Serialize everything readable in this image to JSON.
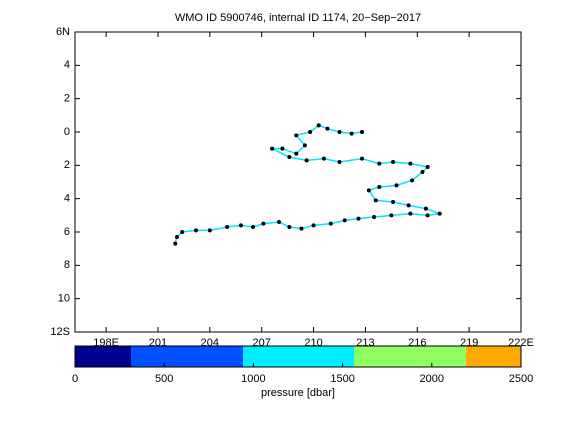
{
  "chart_data": {
    "type": "line",
    "title": "WMO ID 5900746, internal ID 1174, 20−Sep−2017",
    "xlim": [
      196.2,
      222
    ],
    "ylim": [
      -12,
      6
    ],
    "xticks": [
      {
        "value": 198,
        "label": "198E"
      },
      201,
      204,
      207,
      210,
      213,
      216,
      219,
      {
        "value": 222,
        "label": "222E"
      }
    ],
    "yticks": [
      {
        "value": 6,
        "label": "6N"
      },
      4,
      2,
      0,
      {
        "value": -2,
        "label": "2"
      },
      {
        "value": -4,
        "label": "4"
      },
      {
        "value": -6,
        "label": "6"
      },
      {
        "value": -8,
        "label": "8"
      },
      {
        "value": -10,
        "label": "10"
      },
      {
        "value": -12,
        "label": "12S"
      }
    ],
    "series": [
      {
        "color": "#00e5ff",
        "marker_color": "#000000",
        "x": [
          202.0,
          202.1,
          202.4,
          203.2,
          204.0,
          205.0,
          205.8,
          206.5,
          207.1,
          208.0,
          208.6,
          209.3,
          210.0,
          211.0,
          211.8,
          212.6,
          213.5,
          214.5,
          215.6,
          216.6,
          217.3,
          216.5,
          215.5,
          214.6,
          213.6,
          213.2,
          213.8,
          214.8,
          215.7,
          216.3,
          216.6,
          215.6,
          214.6,
          213.8,
          212.8,
          211.5,
          210.6,
          209.6,
          208.6,
          207.6,
          208.2,
          209.0,
          209.5,
          209.0,
          209.8,
          210.3,
          210.8,
          211.5,
          212.2,
          212.8
        ],
        "y": [
          -6.7,
          -6.3,
          -6.0,
          -5.9,
          -5.9,
          -5.7,
          -5.6,
          -5.7,
          -5.5,
          -5.4,
          -5.7,
          -5.8,
          -5.6,
          -5.5,
          -5.3,
          -5.2,
          -5.1,
          -5.0,
          -4.9,
          -5.0,
          -4.9,
          -4.6,
          -4.4,
          -4.2,
          -4.1,
          -3.5,
          -3.3,
          -3.2,
          -2.9,
          -2.4,
          -2.1,
          -1.9,
          -1.8,
          -1.9,
          -1.6,
          -1.8,
          -1.6,
          -1.7,
          -1.5,
          -1.0,
          -1.0,
          -1.3,
          -0.8,
          -0.2,
          0.0,
          0.4,
          0.2,
          0.0,
          -0.1,
          0.0
        ]
      }
    ],
    "colorbar": {
      "label": "pressure [dbar]",
      "lim": [
        0,
        2500
      ],
      "ticks": [
        0,
        500,
        1000,
        1500,
        2000,
        2500
      ],
      "segments": [
        {
          "from": 0,
          "to": 314,
          "color": "#00008f"
        },
        {
          "from": 314,
          "to": 942,
          "color": "#0050ff"
        },
        {
          "from": 942,
          "to": 1564,
          "color": "#00eeff"
        },
        {
          "from": 1564,
          "to": 2192,
          "color": "#90ff60"
        },
        {
          "from": 2192,
          "to": 2500,
          "color": "#ffaa00"
        }
      ]
    }
  }
}
